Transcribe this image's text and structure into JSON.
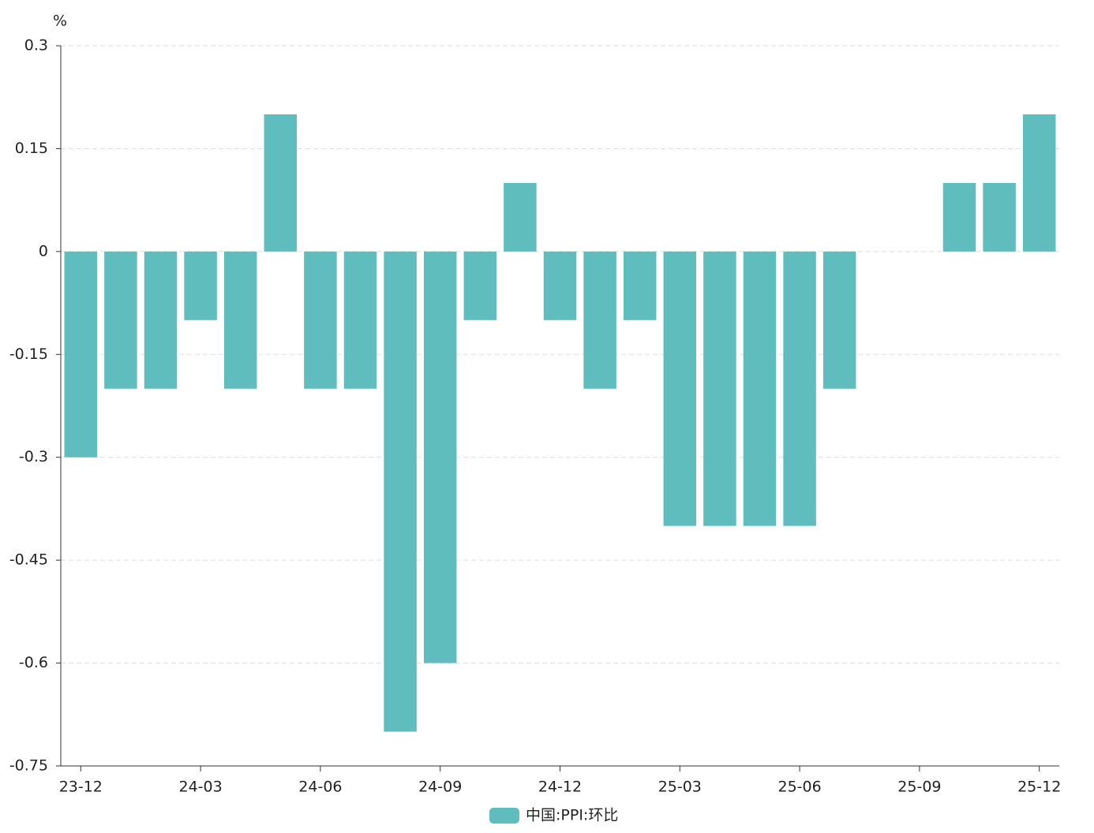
{
  "chart_data": {
    "type": "bar",
    "unit": "%",
    "categories": [
      "23-12",
      null,
      null,
      "24-03",
      null,
      null,
      "24-06",
      null,
      null,
      "24-09",
      null,
      null,
      "24-12",
      null,
      null,
      "25-03",
      null,
      null,
      "25-06",
      null,
      null,
      "25-09",
      null,
      null,
      "25-12"
    ],
    "series": [
      {
        "name": "中国:PPI:环比",
        "color": "#5fbdbe",
        "values": [
          -0.3,
          -0.2,
          -0.2,
          -0.1,
          -0.2,
          0.2,
          -0.2,
          -0.2,
          -0.7,
          -0.6,
          -0.1,
          0.1,
          -0.1,
          -0.2,
          -0.1,
          -0.4,
          -0.4,
          -0.4,
          -0.4,
          -0.2,
          0,
          0,
          0.1,
          0.1,
          0.2
        ]
      }
    ],
    "ylim": [
      -0.75,
      0.3
    ],
    "yticks": [
      0.3,
      0.15,
      0,
      -0.15,
      -0.3,
      -0.45,
      -0.6,
      -0.75
    ],
    "grid": true,
    "legend": "bottom"
  }
}
